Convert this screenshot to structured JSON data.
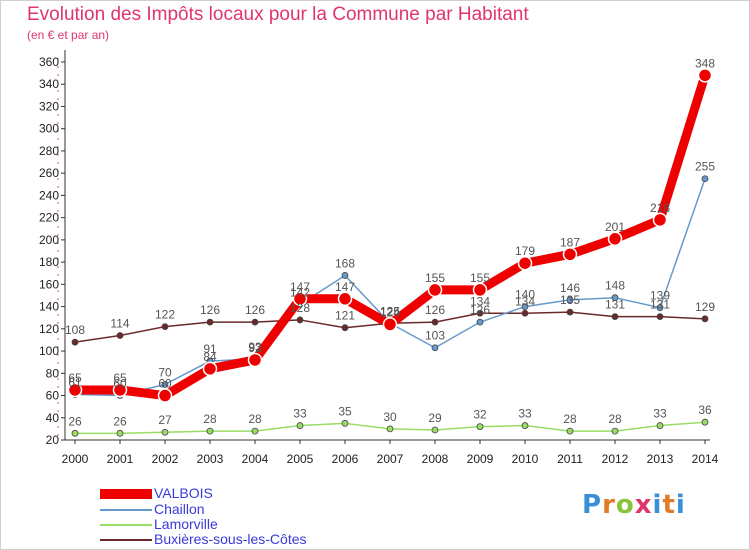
{
  "title": "Evolution des Impôts locaux pour la Commune par Habitant",
  "subtitle": "(en € et par an)",
  "logo_text": "Proxiti",
  "chart_data": {
    "type": "line",
    "title": "Evolution des Impôts locaux pour la Commune par Habitant",
    "subtitle": "(en € et par an)",
    "xlabel": "",
    "ylabel": "",
    "ylim": [
      20,
      360
    ],
    "yticks": [
      "20",
      "40",
      "60",
      "80",
      "100",
      "120",
      "140",
      "160",
      "180",
      "200",
      "220",
      "240",
      "260",
      "280",
      "300",
      "320",
      "340",
      "360"
    ],
    "categories": [
      "2000",
      "2001",
      "2002",
      "2003",
      "2004",
      "2005",
      "2006",
      "2007",
      "2008",
      "2009",
      "2010",
      "2011",
      "2012",
      "2013",
      "2014"
    ],
    "grid": false,
    "legend": "bottom-left",
    "series": [
      {
        "name": "Buxières-sous-les-Côtes",
        "color": "#6b2a2a",
        "values": [
          108,
          114,
          122,
          126,
          126,
          128,
          121,
          125,
          126,
          134,
          134,
          135,
          131,
          131,
          129
        ]
      },
      {
        "name": "Lamorville",
        "color": "#99dd66",
        "values": [
          26,
          26,
          27,
          28,
          28,
          33,
          35,
          30,
          29,
          32,
          33,
          28,
          28,
          33,
          36
        ]
      },
      {
        "name": "Chaillon",
        "color": "#6699cc",
        "values": [
          61,
          60,
          70,
          91,
          93,
          142,
          168,
          125,
          103,
          126,
          140,
          146,
          148,
          139,
          255
        ]
      },
      {
        "name": "VALBOIS",
        "color": "#ee0000",
        "values": [
          65,
          65,
          60,
          84,
          92,
          147,
          147,
          124,
          155,
          155,
          179,
          187,
          201,
          218,
          348
        ]
      }
    ],
    "legend_order": [
      "VALBOIS",
      "Chaillon",
      "Lamorville",
      "Buxières-sous-les-Côtes"
    ]
  }
}
